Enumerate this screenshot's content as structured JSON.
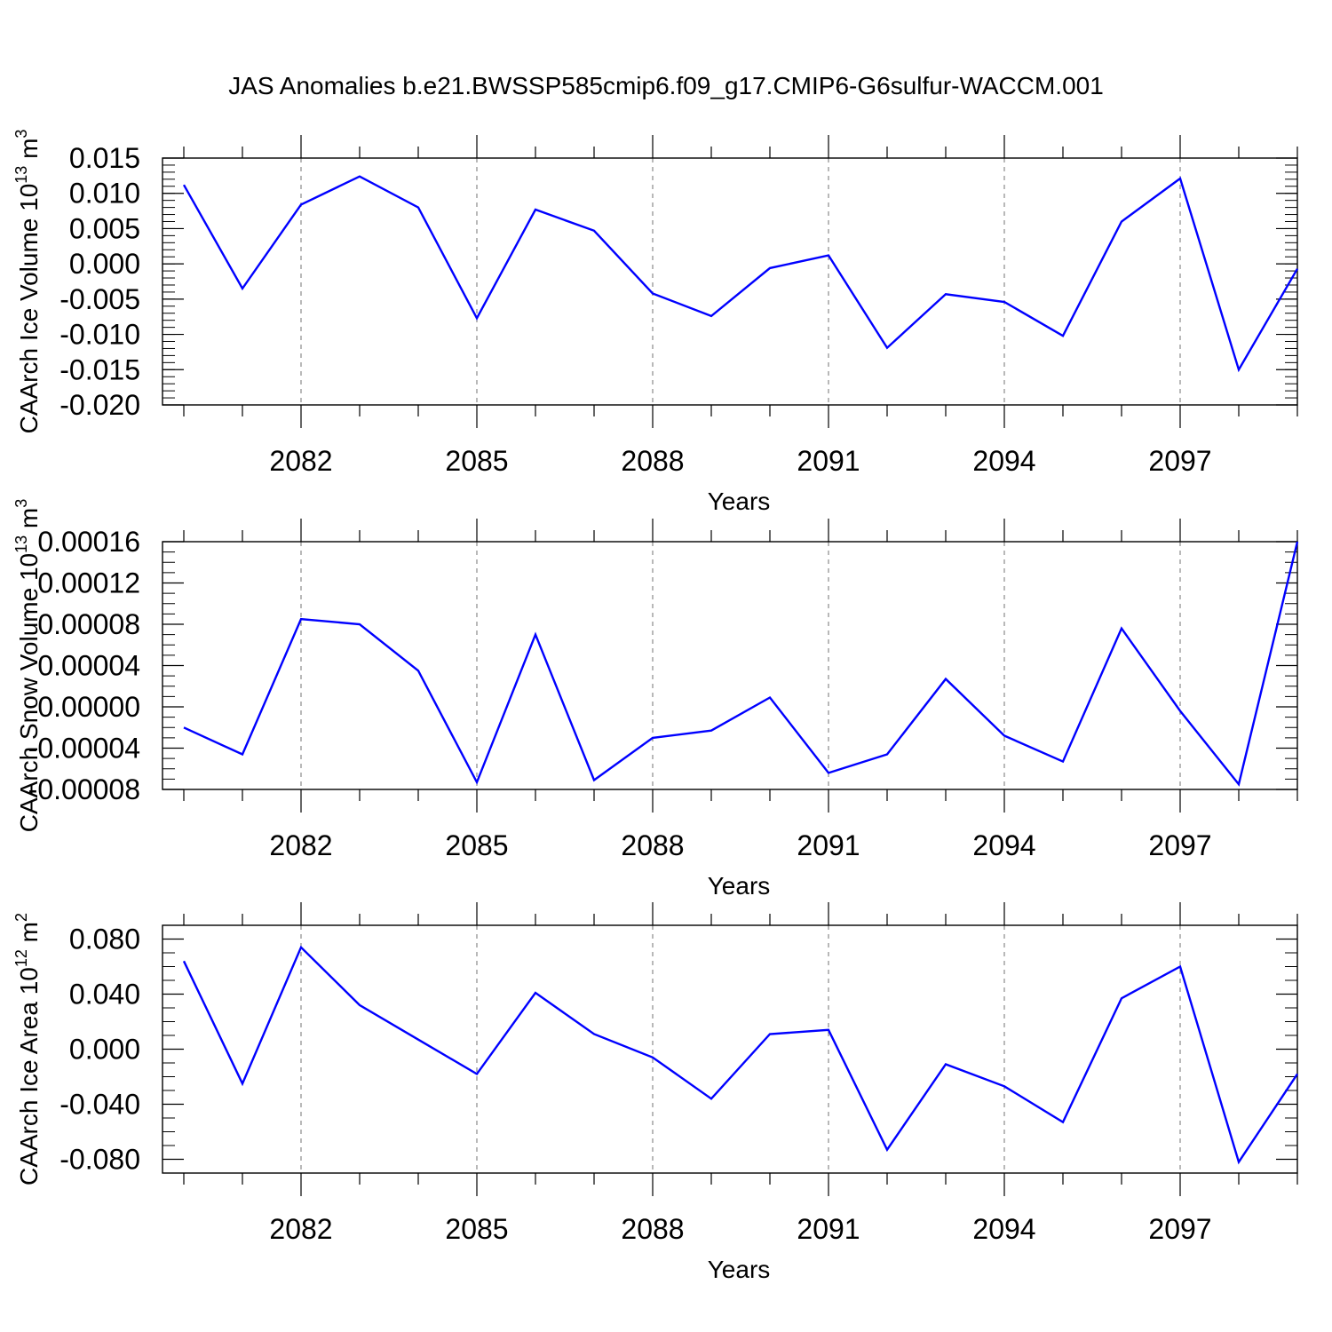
{
  "title": "JAS Anomalies b.e21.BWSSP585cmip6.f09_g17.CMIP6-G6sulfur-WACCM.001",
  "colors": {
    "line": "#0000ff",
    "axis": "#000000",
    "grid": "#8a8a8a"
  },
  "chart_data": [
    {
      "type": "line",
      "title": "",
      "xlabel": "Years",
      "ylabel": {
        "text": "CAArch Ice Volume 10",
        "sup": "13",
        "unit": " m",
        "unit_sup": "3"
      },
      "xlim": [
        2080,
        2099
      ],
      "ylim": [
        -0.02,
        0.015
      ],
      "xticks": [
        2082,
        2085,
        2088,
        2091,
        2094,
        2097
      ],
      "xtick_labels": [
        "2082",
        "2085",
        "2088",
        "2091",
        "2094",
        "2097"
      ],
      "yticks": [
        -0.02,
        -0.015,
        -0.01,
        -0.005,
        0.0,
        0.005,
        0.01,
        0.015
      ],
      "ytick_labels": [
        "-0.020",
        "-0.015",
        "-0.010",
        "-0.005",
        "0.000",
        "0.005",
        "0.010",
        "0.015"
      ],
      "grid": "vertical dashed at major x ticks",
      "series": [
        {
          "x": [
            2080,
            2081,
            2082,
            2083,
            2084,
            2085,
            2086,
            2087,
            2088,
            2089,
            2090,
            2091,
            2092,
            2093,
            2094,
            2095,
            2096,
            2097,
            2098,
            2099
          ],
          "values": [
            0.0112,
            -0.0035,
            0.0084,
            0.0124,
            0.008,
            -0.0077,
            0.0077,
            0.0047,
            -0.0042,
            -0.0074,
            -0.0006,
            0.0012,
            -0.0119,
            -0.0043,
            -0.0054,
            -0.0102,
            0.006,
            0.0121,
            -0.015,
            -0.0007
          ]
        }
      ]
    },
    {
      "type": "line",
      "title": "",
      "xlabel": "Years",
      "ylabel": {
        "text": "CAArch Snow Volume 10",
        "sup": "13",
        "unit": " m",
        "unit_sup": "3"
      },
      "xlim": [
        2080,
        2099
      ],
      "ylim": [
        -8e-05,
        0.00016
      ],
      "xticks": [
        2082,
        2085,
        2088,
        2091,
        2094,
        2097
      ],
      "xtick_labels": [
        "2082",
        "2085",
        "2088",
        "2091",
        "2094",
        "2097"
      ],
      "yticks": [
        -8e-05,
        -4e-05,
        0.0,
        4e-05,
        8e-05,
        0.00012,
        0.00016
      ],
      "ytick_labels": [
        "-0.00008",
        "-0.00004",
        "0.00000",
        "0.00004",
        "0.00008",
        "0.00012",
        "0.00016"
      ],
      "grid": "vertical dashed at major x ticks",
      "series": [
        {
          "x": [
            2080,
            2081,
            2082,
            2083,
            2084,
            2085,
            2086,
            2087,
            2088,
            2089,
            2090,
            2091,
            2092,
            2093,
            2094,
            2095,
            2096,
            2097,
            2098,
            2099
          ],
          "values": [
            -2e-05,
            -4.6e-05,
            8.5e-05,
            8e-05,
            3.5e-05,
            -7.3e-05,
            7e-05,
            -7.1e-05,
            -3e-05,
            -2.3e-05,
            9e-06,
            -6.4e-05,
            -4.6e-05,
            2.7e-05,
            -2.8e-05,
            -5.3e-05,
            7.6e-05,
            -4e-06,
            -7.5e-05,
            0.00016
          ]
        }
      ]
    },
    {
      "type": "line",
      "title": "",
      "xlabel": "Years",
      "ylabel": {
        "text": "CAArch Ice Area 10",
        "sup": "12",
        "unit": " m",
        "unit_sup": "2"
      },
      "xlim": [
        2080,
        2099
      ],
      "ylim": [
        -0.09,
        0.09
      ],
      "xticks": [
        2082,
        2085,
        2088,
        2091,
        2094,
        2097
      ],
      "xtick_labels": [
        "2082",
        "2085",
        "2088",
        "2091",
        "2094",
        "2097"
      ],
      "yticks": [
        -0.08,
        -0.04,
        0.0,
        0.04,
        0.08
      ],
      "ytick_labels": [
        "-0.080",
        "-0.040",
        "0.000",
        "0.040",
        "0.080"
      ],
      "grid": "vertical dashed at major x ticks",
      "series": [
        {
          "x": [
            2080,
            2081,
            2082,
            2083,
            2084,
            2085,
            2086,
            2087,
            2088,
            2089,
            2090,
            2091,
            2092,
            2093,
            2094,
            2095,
            2096,
            2097,
            2098,
            2099
          ],
          "values": [
            0.064,
            -0.025,
            0.074,
            0.032,
            0.007,
            -0.018,
            0.041,
            0.011,
            -0.006,
            -0.036,
            0.011,
            0.014,
            -0.073,
            -0.011,
            -0.027,
            -0.053,
            0.037,
            0.06,
            -0.082,
            -0.018
          ]
        }
      ]
    }
  ]
}
